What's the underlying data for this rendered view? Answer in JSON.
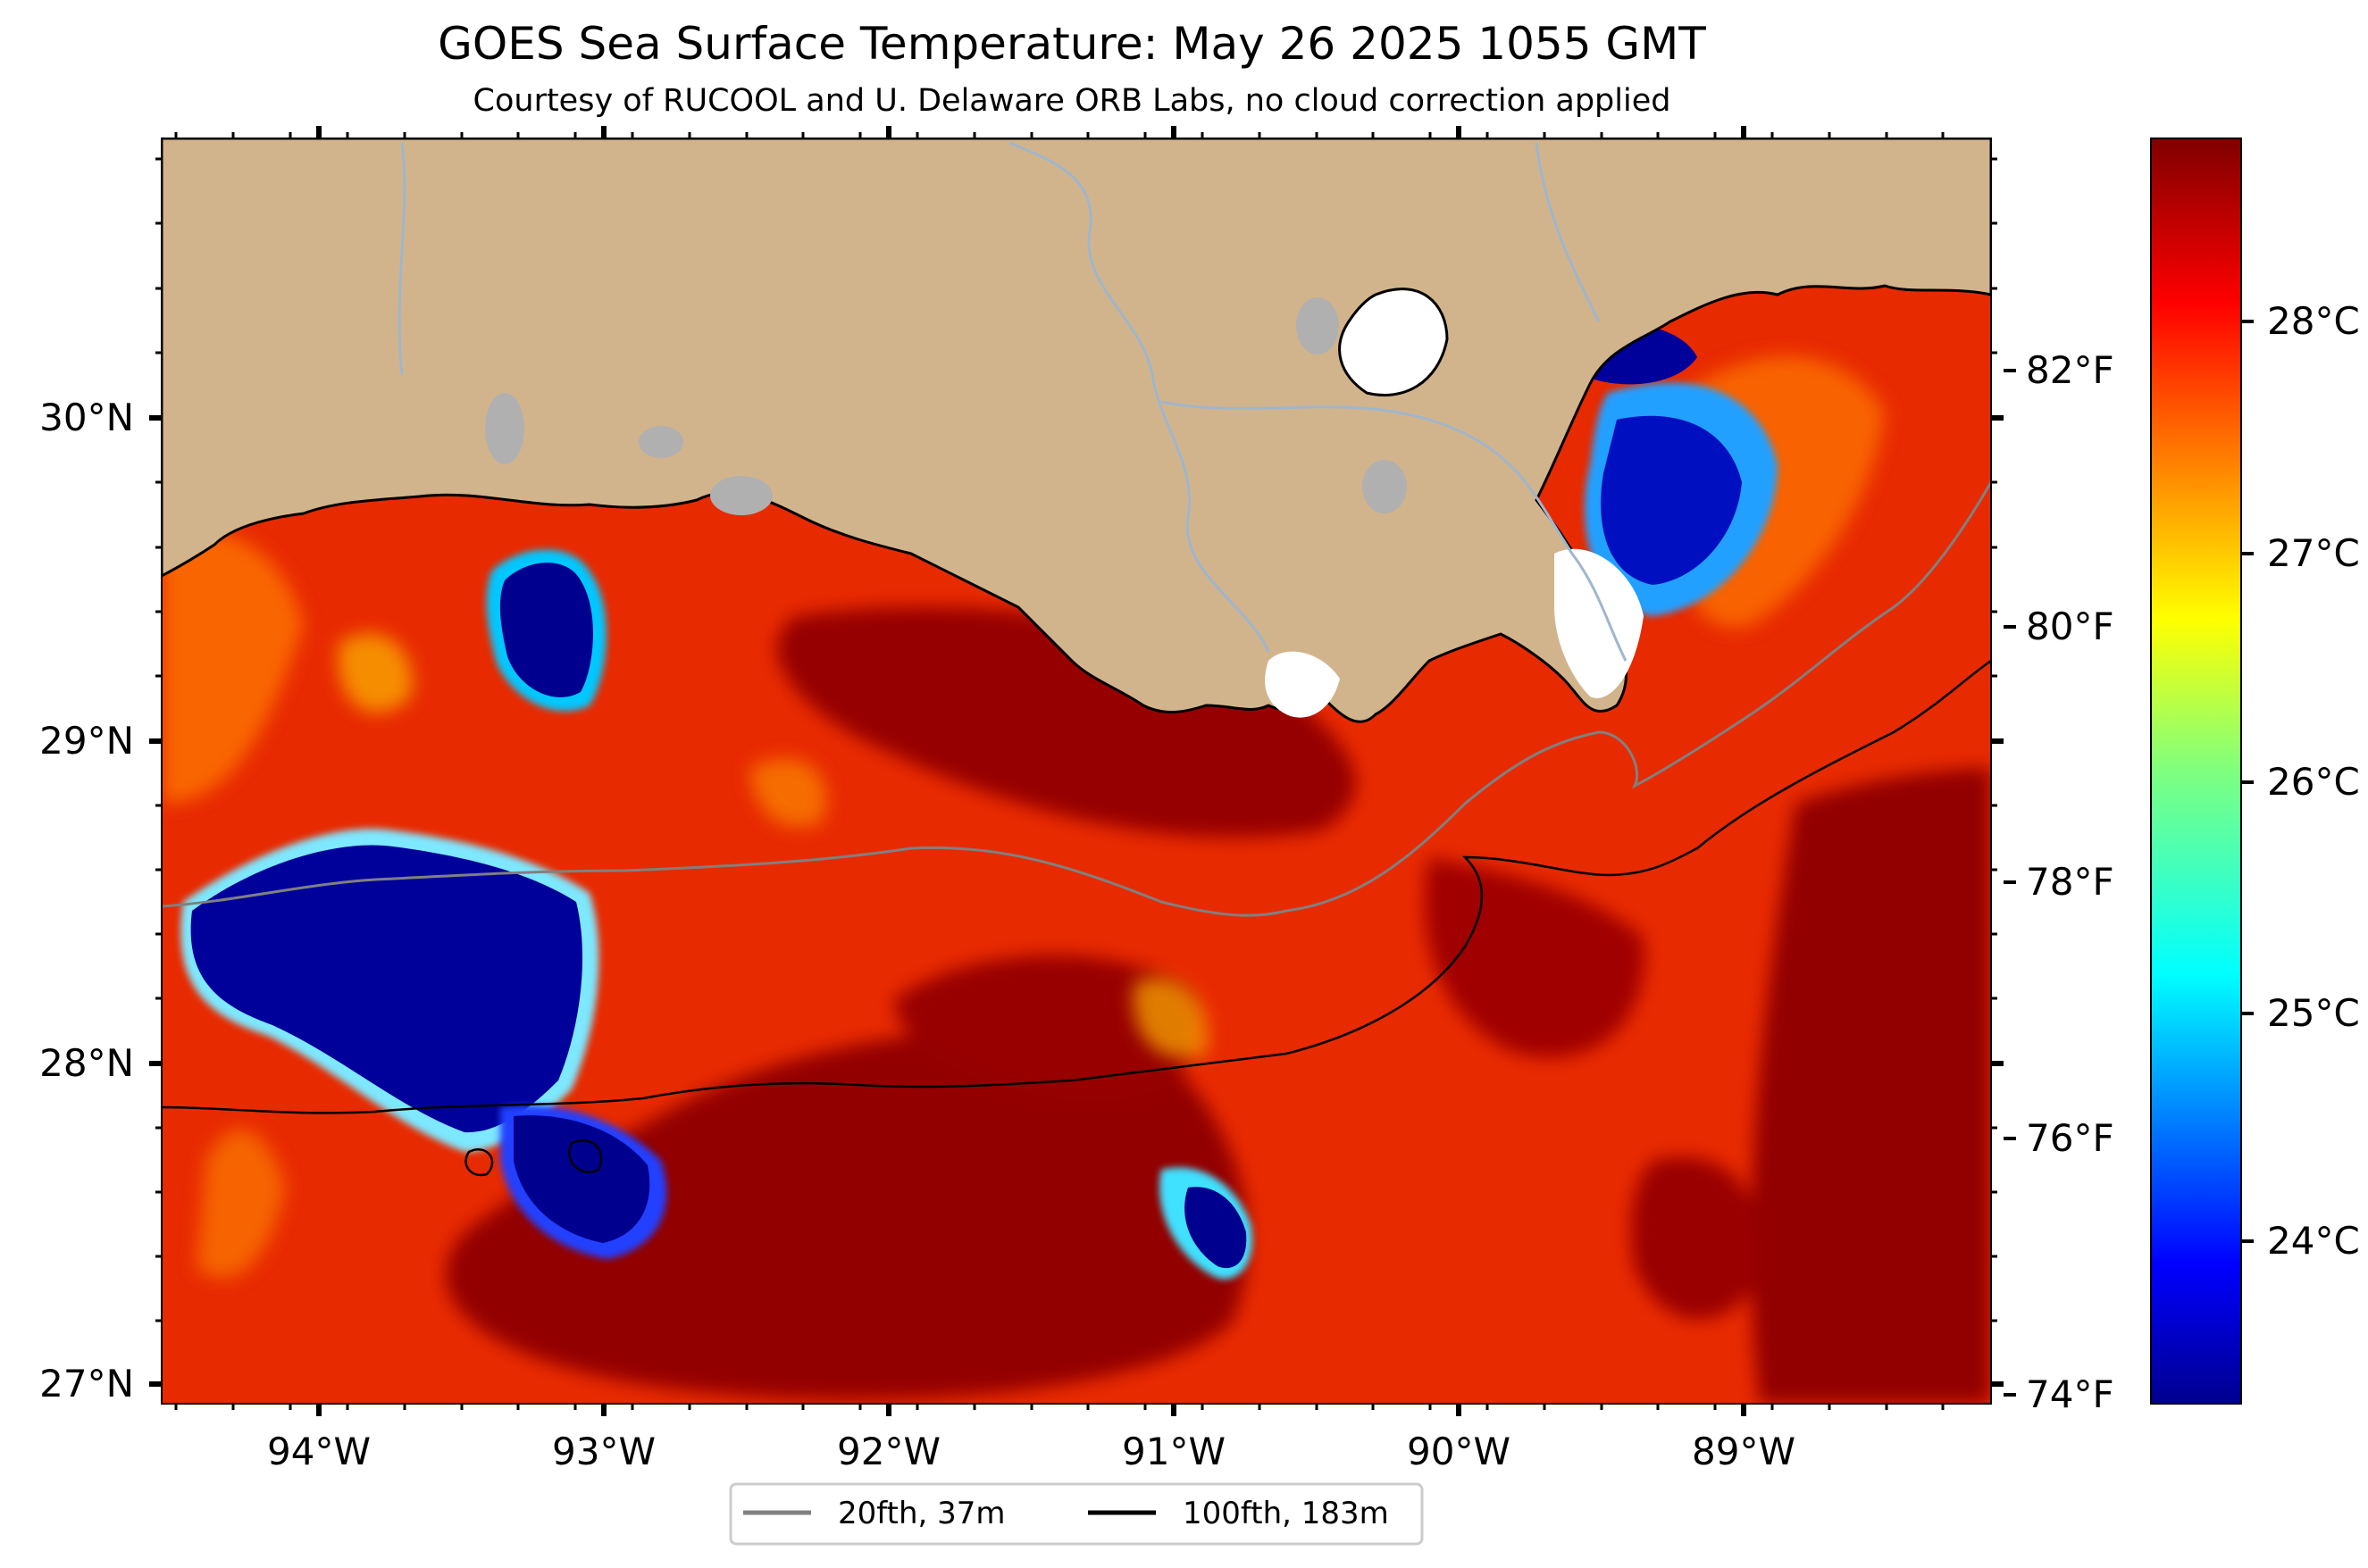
{
  "figure": {
    "title": "GOES Sea Surface Temperature: May 26 2025 1055 GMT",
    "subtitle": "Courtesy of RUCOOL and U. Delaware ORB Labs, no cloud correction applied"
  },
  "map": {
    "longitude_ticks": [
      "94°W",
      "93°W",
      "92°W",
      "91°W",
      "90°W",
      "89°W"
    ],
    "latitude_ticks": [
      "30°N",
      "29°N",
      "28°N",
      "27°N"
    ],
    "colors": {
      "land": "#d2b48c",
      "rivers": "#9fb6cd",
      "lakes": "#b0b0b0",
      "no_data": "#ffffff",
      "sst_warm": "#8b0000",
      "sst_cold": "#00008b"
    }
  },
  "legend": {
    "items": [
      {
        "label": "20fth, 37m",
        "color": "#808080"
      },
      {
        "label": "100fth, 183m",
        "color": "#000000"
      }
    ]
  },
  "colorbar": {
    "colormap": "jet",
    "celsius_ticks": [
      "24°C",
      "25°C",
      "26°C",
      "27°C",
      "28°C"
    ],
    "fahrenheit_ticks": [
      "74°F",
      "76°F",
      "78°F",
      "80°F",
      "82°F"
    ]
  }
}
